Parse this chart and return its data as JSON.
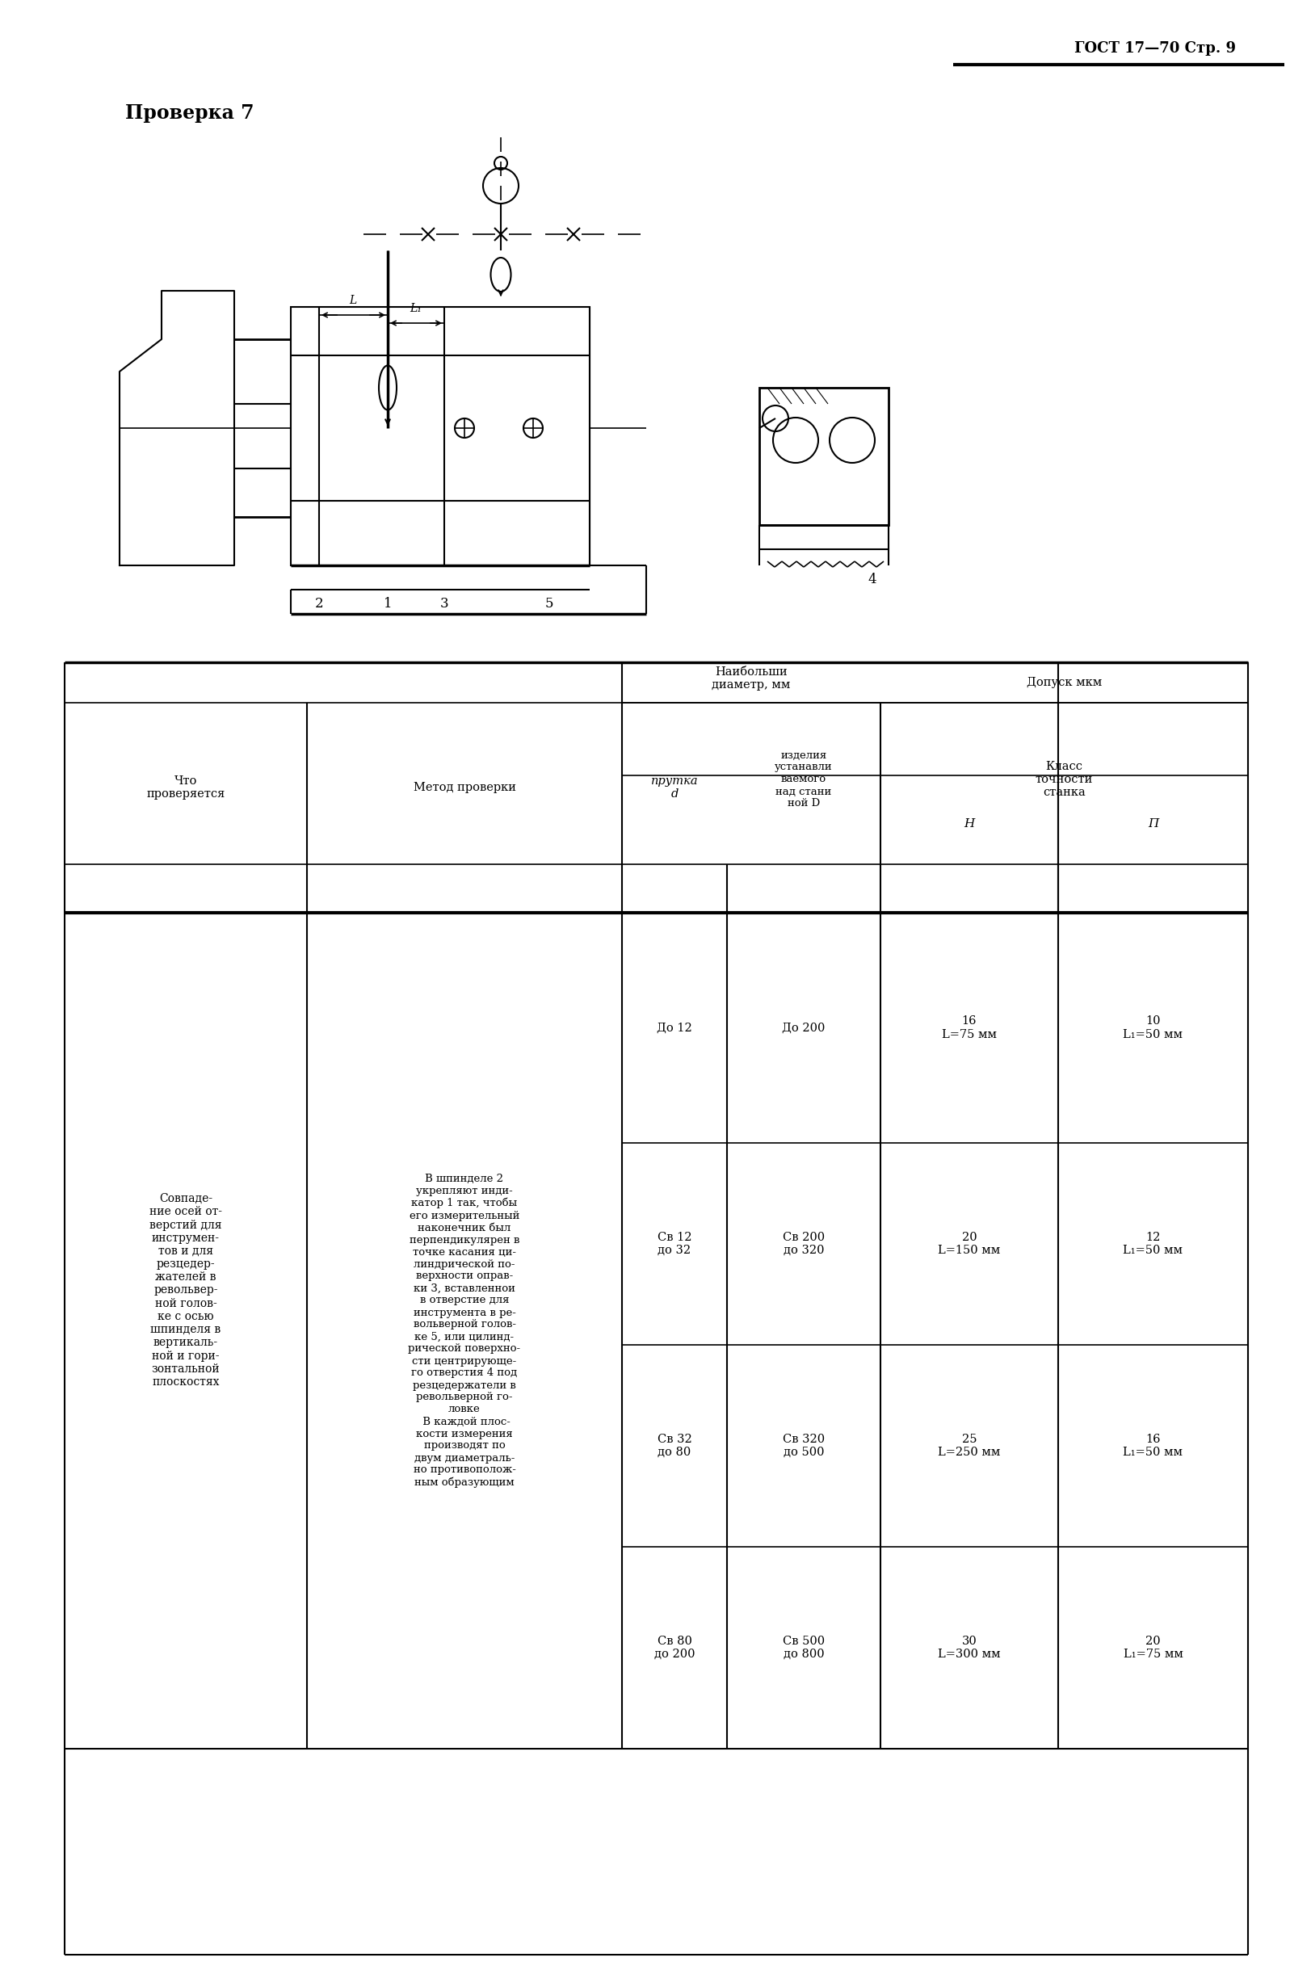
{
  "title_right": "ГОСТ 17—70 Стр. 9",
  "section_title": "Проверка 7",
  "table_headers": {
    "col1": "Что\nпроверяется",
    "col2": "Метод проверки",
    "col3_top": "Наибольши\nдиаметр, мм",
    "col3a": "прутка\nd",
    "col3b": "изделия\nустанавли\nваемого\nнад стани\nной D",
    "col4_top": "Допуск мкм",
    "col4_sub": "Класс\nточности\nстанка",
    "col4a": "Н",
    "col4b": "П"
  },
  "col1_text": "Совпаде-\nние осей от-\nверстий для\nинструмен-\nтов и для\nрезцедер-\nжателей в\nревольвер-\nной голов-\nке с осью\nшпинделя в\nвертикаль-\nной и гори-\nзонтальной\nплоскостях",
  "col2_text": "В шпинделе 2\nукрепляют инди-\nкатор 1 так, чтобы\nего измерительный\nнаконечник был\nперпендикулярен в\nточке касания ци-\nлиндрической по-\nверхности оправ-\nки 3, вставленнои\nв отверстие для\nинструмента в ре-\nвольверной голов-\nке 5, или цилинд-\nрической поверхно-\nсти центрирующе-\nго отверстия 4 под\nрезцедержатели в\nревольверной го-\nловке\n В каждой плос-\nкости измерения\nпроизводят по\nдвум диаметраль-\nно противополож-\nным образующим",
  "rows": [
    {
      "d": "До 12",
      "D": "До 200",
      "H": "16\nL=75 мм",
      "P": "10\nL₁=50 мм"
    },
    {
      "d": "Св 12\nдо 32",
      "D": "Св 200\nдо 320",
      "H": "20\nL=150 мм",
      "P": "12\nL₁=50 мм"
    },
    {
      "d": "Св 32\nдо 80",
      "D": "Св 320\nдо 500",
      "H": "25\nL=250 мм",
      "P": "16\nL₁=50 мм"
    },
    {
      "d": "Св 80\nдо 200",
      "D": "Св 500\nдо 800",
      "H": "30\nL=300 мм",
      "P": "20\nL₁=75 мм"
    }
  ],
  "bg_color": "#ffffff",
  "text_color": "#000000",
  "line_color": "#000000"
}
